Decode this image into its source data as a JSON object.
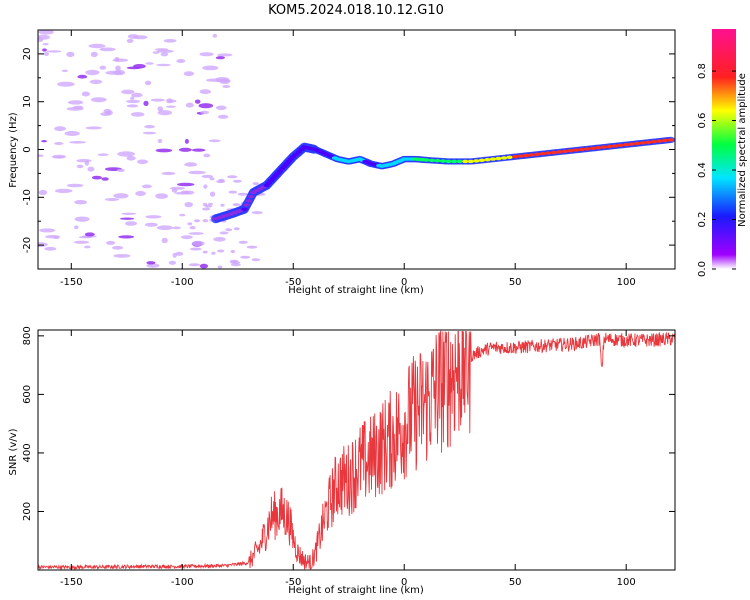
{
  "title": "KOM5.2024.018.10.12.G10",
  "chart_data": [
    {
      "type": "heatmap",
      "xlabel": "Height of straight line (km)",
      "ylabel": "Frequency (Hz)",
      "xlim": [
        -165,
        122
      ],
      "ylim": [
        -25,
        25
      ],
      "xticks": [
        -150,
        -100,
        -50,
        0,
        50,
        100
      ],
      "yticks": [
        -20,
        -10,
        0,
        10,
        20
      ],
      "colorbar": {
        "label": "Normalized spectral amplitude",
        "range": [
          0,
          0.97
        ],
        "ticks": [
          0.0,
          0.2,
          0.4,
          0.6,
          0.8
        ],
        "colormap": "rainbow (violet → blue → cyan → green → yellow → red → magenta)"
      },
      "ridge": {
        "x": [
          -85,
          -78,
          -72,
          -68,
          -62,
          -58,
          -54,
          -50,
          -45,
          -40,
          -35,
          -30,
          -25,
          -20,
          -15,
          -10,
          -5,
          0,
          5,
          10,
          20,
          30,
          40,
          50,
          60,
          70,
          80,
          90,
          100,
          110,
          120
        ],
        "y": [
          -14.5,
          -13.5,
          -12.5,
          -9,
          -7.5,
          -5.5,
          -3.5,
          -1.5,
          0.5,
          0,
          -1,
          -2,
          -2.5,
          -2,
          -3,
          -3.5,
          -3,
          -2,
          -2,
          -2.2,
          -2.5,
          -2.5,
          -2,
          -1.5,
          -1,
          -0.5,
          0,
          0.5,
          1,
          1.5,
          2
        ],
        "amplitude": [
          0.15,
          0.2,
          0.25,
          0.2,
          0.25,
          0.3,
          0.3,
          0.35,
          0.3,
          0.35,
          0.35,
          0.4,
          0.4,
          0.4,
          0.35,
          0.4,
          0.4,
          0.45,
          0.5,
          0.55,
          0.6,
          0.7,
          0.75,
          0.8,
          0.85,
          0.85,
          0.9,
          0.9,
          0.95,
          0.95,
          0.97
        ]
      },
      "noise_region_x": [
        -165,
        -80
      ]
    },
    {
      "type": "line",
      "xlabel": "Height of straight line (km)",
      "ylabel": "SNR (v/v)",
      "xlim": [
        -165,
        122
      ],
      "ylim": [
        0,
        820
      ],
      "xticks": [
        -150,
        -100,
        -50,
        0,
        50,
        100
      ],
      "yticks": [
        200,
        400,
        600,
        800
      ],
      "series": [
        {
          "color": "#e8373d",
          "x": [
            -165,
            -140,
            -120,
            -100,
            -80,
            -70,
            -65,
            -60,
            -55,
            -52,
            -50,
            -48,
            -45,
            -42,
            -40,
            -35,
            -30,
            -25,
            -20,
            -15,
            -10,
            -5,
            0,
            5,
            10,
            15,
            20,
            25,
            30,
            35,
            40,
            50,
            60,
            70,
            80,
            88,
            89,
            90,
            100,
            110,
            122
          ],
          "y": [
            10,
            10,
            12,
            12,
            15,
            25,
            80,
            180,
            200,
            170,
            110,
            60,
            30,
            25,
            60,
            200,
            300,
            310,
            360,
            380,
            420,
            450,
            500,
            540,
            570,
            620,
            660,
            700,
            730,
            750,
            760,
            760,
            765,
            770,
            775,
            790,
            680,
            790,
            785,
            785,
            790
          ]
        }
      ]
    }
  ]
}
